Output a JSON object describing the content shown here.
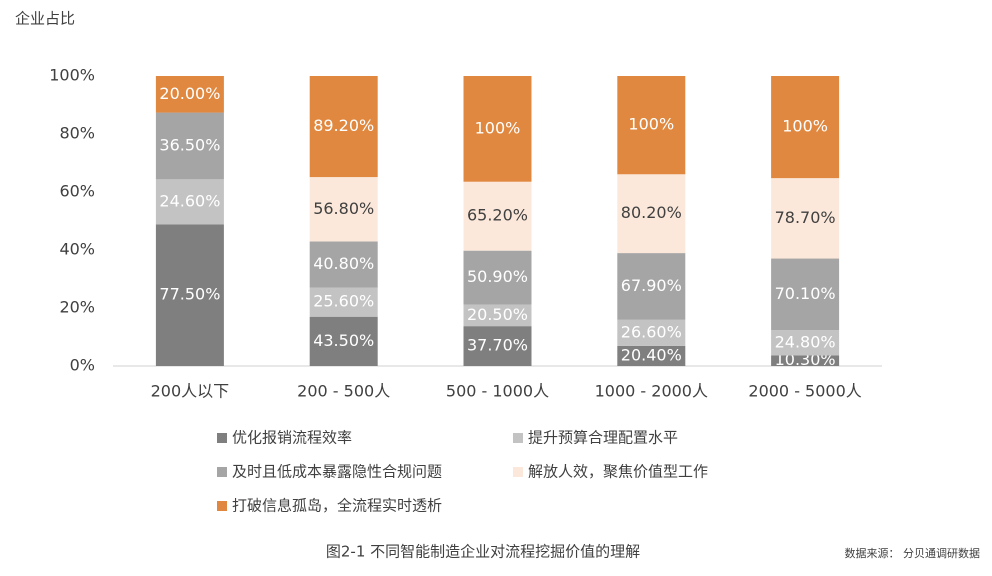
{
  "chart_data": {
    "type": "bar",
    "stacked": "percent",
    "y_label": "企业占比",
    "caption": "图2-1 不同智能制造企业对流程挖掘价值的理解",
    "source": "数据来源： 分贝通调研数据",
    "categories": [
      "200人以下",
      "200 - 500人",
      "500 - 1000人",
      "1000 - 2000人",
      "2000 - 5000人"
    ],
    "series": [
      {
        "name": "优化报销流程效率",
        "color": "#7f7f7f",
        "values": [
          77.5,
          43.5,
          37.7,
          20.4,
          10.3
        ],
        "value_labels": [
          "77.50%",
          "43.50%",
          "37.70%",
          "20.40%",
          "10.30%"
        ]
      },
      {
        "name": "提升预算合理配置水平",
        "color": "#c3c3c3",
        "values": [
          24.6,
          25.6,
          20.5,
          26.6,
          24.8
        ],
        "value_labels": [
          "24.60%",
          "25.60%",
          "20.50%",
          "26.60%",
          "24.80%"
        ]
      },
      {
        "name": "及时且低成本暴露隐性合规问题",
        "color": "#a5a5a5",
        "values": [
          36.5,
          40.8,
          50.9,
          67.9,
          70.1
        ],
        "value_labels": [
          "36.50%",
          "40.80%",
          "50.90%",
          "67.90%",
          "70.10%"
        ]
      },
      {
        "name": "解放人效，聚焦价值型工作",
        "color": "#fbe8da",
        "values": [
          null,
          56.8,
          65.2,
          80.2,
          78.7
        ],
        "value_labels": [
          null,
          "56.80%",
          "65.20%",
          "80.20%",
          "78.70%"
        ]
      },
      {
        "name": "打破信息孤岛，全流程实时透析",
        "color": "#e0883f",
        "values": [
          20.0,
          89.2,
          100,
          100,
          100
        ],
        "value_labels": [
          "20.00%",
          "89.20%",
          "100%",
          "100%",
          "100%"
        ]
      }
    ],
    "ylim": [
      0,
      100
    ],
    "yticks": [
      {
        "value": 0,
        "label": "0%"
      },
      {
        "value": 20,
        "label": "20%"
      },
      {
        "value": 40,
        "label": "40%"
      },
      {
        "value": 60,
        "label": "60%"
      },
      {
        "value": 80,
        "label": "80%"
      },
      {
        "value": 100,
        "label": "100%"
      }
    ]
  }
}
